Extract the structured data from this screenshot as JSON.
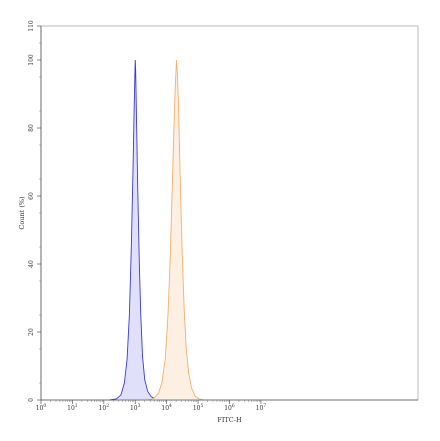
{
  "chart_data": {
    "type": "area",
    "xlabel": "FITC-H",
    "ylabel": "Count (%)",
    "x_scale": "log10",
    "xlim": [
      1,
      1000000000000
    ],
    "ylim": [
      0,
      110
    ],
    "x_ticks": [
      {
        "value": 1,
        "mantissa": "10",
        "exp": "0"
      },
      {
        "value": 10,
        "mantissa": "10",
        "exp": "1"
      },
      {
        "value": 100,
        "mantissa": "10",
        "exp": "2"
      },
      {
        "value": 1000,
        "mantissa": "10",
        "exp": "3"
      },
      {
        "value": 10000,
        "mantissa": "10",
        "exp": "4"
      },
      {
        "value": 100000,
        "mantissa": "10",
        "exp": "5"
      },
      {
        "value": 1000000,
        "mantissa": "10",
        "exp": "6"
      },
      {
        "value": 10000000,
        "mantissa": "10",
        "exp": "7"
      }
    ],
    "y_ticks": [
      0,
      20,
      40,
      60,
      80,
      100,
      110
    ],
    "grid": false,
    "legend": "none",
    "series": [
      {
        "color": "#3a3ad0",
        "fill": "#e0e0fb",
        "points": [
          [
            150,
            0
          ],
          [
            250,
            0.3
          ],
          [
            350,
            1.5
          ],
          [
            450,
            5
          ],
          [
            550,
            12
          ],
          [
            650,
            25
          ],
          [
            750,
            45
          ],
          [
            850,
            68
          ],
          [
            920,
            85
          ],
          [
            980,
            97
          ],
          [
            1000,
            100
          ],
          [
            1030,
            97
          ],
          [
            1100,
            82
          ],
          [
            1200,
            62
          ],
          [
            1350,
            40
          ],
          [
            1500,
            25
          ],
          [
            1700,
            13
          ],
          [
            2000,
            6
          ],
          [
            2500,
            2.5
          ],
          [
            3200,
            1
          ],
          [
            4500,
            0.2
          ],
          [
            6000,
            0
          ]
        ]
      },
      {
        "color": "#f0b070",
        "fill": "#fdefe1",
        "points": [
          [
            2500,
            0
          ],
          [
            4000,
            0.5
          ],
          [
            5500,
            2
          ],
          [
            7000,
            5
          ],
          [
            9000,
            12
          ],
          [
            11000,
            25
          ],
          [
            13000,
            42
          ],
          [
            15000,
            62
          ],
          [
            17000,
            80
          ],
          [
            19000,
            93
          ],
          [
            20500,
            100
          ],
          [
            22000,
            96
          ],
          [
            24000,
            85
          ],
          [
            27000,
            65
          ],
          [
            31000,
            44
          ],
          [
            36000,
            27
          ],
          [
            42000,
            15
          ],
          [
            50000,
            8
          ],
          [
            62000,
            3.5
          ],
          [
            80000,
            1.2
          ],
          [
            110000,
            0.3
          ],
          [
            150000,
            0
          ]
        ]
      }
    ]
  }
}
